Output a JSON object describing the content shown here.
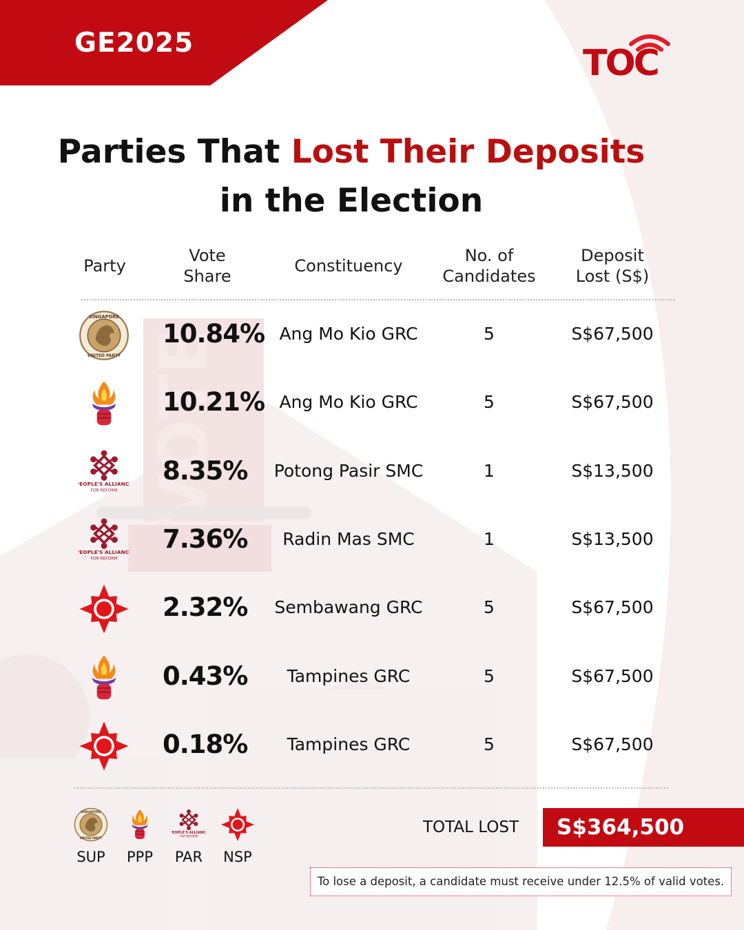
{
  "header": {
    "tag": "GE2025",
    "logo_text": "TOC"
  },
  "title": {
    "line1_prefix": "Parties That ",
    "line1_accent": "Lost Their Deposits",
    "line2": "in the Election"
  },
  "table": {
    "headers": {
      "party": "Party",
      "vote_share": [
        "Vote",
        "Share"
      ],
      "constituency": "Constituency",
      "candidates": [
        "No. of",
        "Candidates"
      ],
      "deposit": [
        "Deposit",
        "Lost (S$)"
      ]
    },
    "rows": [
      {
        "party": "SUP",
        "logo": "sup-lion-logo-icon",
        "vote_share": "10.84%",
        "constituency": "Ang Mo Kio GRC",
        "candidates": "5",
        "deposit": "S$67,500"
      },
      {
        "party": "PPP",
        "logo": "ppp-torch-logo-icon",
        "vote_share": "10.21%",
        "constituency": "Ang Mo Kio GRC",
        "candidates": "5",
        "deposit": "S$67,500"
      },
      {
        "party": "PAR",
        "logo": "par-alliance-logo-icon",
        "vote_share": "8.35%",
        "constituency": "Potong Pasir SMC",
        "candidates": "1",
        "deposit": "S$13,500"
      },
      {
        "party": "PAR",
        "logo": "par-alliance-logo-icon",
        "vote_share": "7.36%",
        "constituency": "Radin Mas SMC",
        "candidates": "1",
        "deposit": "S$13,500"
      },
      {
        "party": "NSP",
        "logo": "nsp-star-logo-icon",
        "vote_share": "2.32%",
        "constituency": "Sembawang GRC",
        "candidates": "5",
        "deposit": "S$67,500"
      },
      {
        "party": "PPP",
        "logo": "ppp-torch-logo-icon",
        "vote_share": "0.43%",
        "constituency": "Tampines GRC",
        "candidates": "5",
        "deposit": "S$67,500"
      },
      {
        "party": "NSP",
        "logo": "nsp-star-logo-icon",
        "vote_share": "0.18%",
        "constituency": "Tampines GRC",
        "candidates": "5",
        "deposit": "S$67,500"
      }
    ]
  },
  "legend": [
    {
      "label": "SUP",
      "logo": "sup-lion-logo-icon"
    },
    {
      "label": "PPP",
      "logo": "ppp-torch-logo-icon"
    },
    {
      "label": "PAR",
      "logo": "par-alliance-logo-icon"
    },
    {
      "label": "NSP",
      "logo": "nsp-star-logo-icon"
    }
  ],
  "total": {
    "label": "TOTAL LOST",
    "value": "S$364,500"
  },
  "note": "To lose a deposit, a candidate must receive under 12.5% of valid votes.",
  "logo_lettering": {
    "sup": [
      "SINGAPORE",
      "UNITED PARTY"
    ],
    "par": [
      "PEOPLE'S ALLIANCE",
      "FOR REFORM"
    ],
    "background": "VOTE"
  },
  "colors": {
    "accent": "#c10a12",
    "text": "#111111",
    "divider": "#bdbdbd"
  },
  "chart_data": {
    "type": "table",
    "columns": [
      "Party",
      "Vote Share",
      "Constituency",
      "No. of Candidates",
      "Deposit Lost (S$)"
    ],
    "rows": [
      [
        "SUP",
        "10.84%",
        "Ang Mo Kio GRC",
        5,
        "S$67,500"
      ],
      [
        "PPP",
        "10.21%",
        "Ang Mo Kio GRC",
        5,
        "S$67,500"
      ],
      [
        "PAR",
        "8.35%",
        "Potong Pasir SMC",
        1,
        "S$13,500"
      ],
      [
        "PAR",
        "7.36%",
        "Radin Mas SMC",
        1,
        "S$13,500"
      ],
      [
        "NSP",
        "2.32%",
        "Sembawang GRC",
        5,
        "S$67,500"
      ],
      [
        "PPP",
        "0.43%",
        "Tampines GRC",
        5,
        "S$67,500"
      ],
      [
        "NSP",
        "0.18%",
        "Tampines GRC",
        5,
        "S$67,500"
      ]
    ],
    "total": "S$364,500"
  }
}
